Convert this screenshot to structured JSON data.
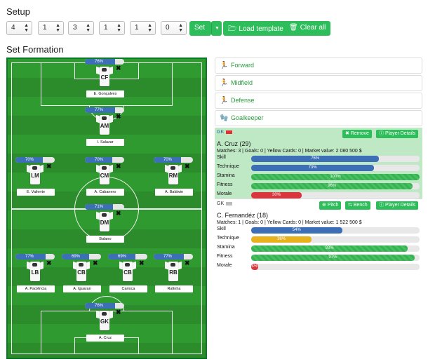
{
  "setup": {
    "title": "Setup",
    "selects": [
      "4",
      "1",
      "3",
      "1",
      "1",
      "0"
    ],
    "set_label": "Set",
    "load_label": "Load template",
    "clear_label": "Clear all"
  },
  "formation": {
    "title": "Set Formation",
    "players": [
      {
        "pos": "CF",
        "name": "E. Gonçalves",
        "pct_label": "76%",
        "pct": 0.76
      },
      {
        "pos": "AM",
        "name": "I. Salazar",
        "pct_label": "77%",
        "pct": 0.77
      },
      {
        "pos": "LM",
        "name": "E. Valiente",
        "pct_label": "70%",
        "pct": 0.7
      },
      {
        "pos": "CM",
        "name": "A. Cabanero",
        "pct_label": "70%",
        "pct": 0.7
      },
      {
        "pos": "RM",
        "name": "A. Baldwin",
        "pct_label": "70%",
        "pct": 0.7
      },
      {
        "pos": "DM",
        "name": "Balano",
        "pct_label": "71%",
        "pct": 0.71
      },
      {
        "pos": "LB",
        "name": "A. Paciência",
        "pct_label": "77%",
        "pct": 0.77
      },
      {
        "pos": "CB",
        "name": "A. Iguaran",
        "pct_label": "69%",
        "pct": 0.69
      },
      {
        "pos": "CB",
        "name": "Carioca",
        "pct_label": "69%",
        "pct": 0.69
      },
      {
        "pos": "RB",
        "name": "Rafinha",
        "pct_label": "77%",
        "pct": 0.77
      },
      {
        "pos": "GK",
        "name": "A. Cruz",
        "pct_label": "76%",
        "pct": 0.76
      }
    ],
    "remove_mark": "✖"
  },
  "panel": {
    "groups": [
      {
        "label": "Forward",
        "icon": "run-icon"
      },
      {
        "label": "Midfield",
        "icon": "run-icon"
      },
      {
        "label": "Defense",
        "icon": "run-icon"
      },
      {
        "label": "Goalkeeper",
        "icon": "goalkeeper-icon"
      }
    ],
    "cards": [
      {
        "pos": "GK",
        "name": "A. Cruz (29)",
        "meta": "Matches: 3 | Goals: 0 | Yellow Cards: 0 | Market value: 2 080 500 $",
        "buttons": [
          "Remove",
          "Player Details"
        ],
        "stats": [
          {
            "label": "Skill",
            "value": "76%",
            "pct": 0.76,
            "color": "blue"
          },
          {
            "label": "Technique",
            "value": "73%",
            "pct": 0.73,
            "color": "blue"
          },
          {
            "label": "Stamina",
            "value": "100%",
            "pct": 1.0,
            "color": "green"
          },
          {
            "label": "Fitness",
            "value": "96%",
            "pct": 0.96,
            "color": "green"
          },
          {
            "label": "Morale",
            "value": "30%",
            "pct": 0.3,
            "color": "red"
          }
        ]
      },
      {
        "pos": "GK",
        "name": "C. Fernandéz (18)",
        "meta": "Matches: 1 | Goals: 0 | Yellow Cards: 0 | Market value: 1 522 500 $",
        "buttons": [
          "Pitch",
          "Bench",
          "Player Details"
        ],
        "stats": [
          {
            "label": "Skill",
            "value": "54%",
            "pct": 0.54,
            "color": "blue"
          },
          {
            "label": "Technique",
            "value": "36%",
            "pct": 0.36,
            "color": "yellow"
          },
          {
            "label": "Stamina",
            "value": "93%",
            "pct": 0.93,
            "color": "green"
          },
          {
            "label": "Fitness",
            "value": "97%",
            "pct": 0.97,
            "color": "green"
          },
          {
            "label": "Morale",
            "value": "4%",
            "pct": 0.04,
            "color": "red"
          }
        ]
      }
    ]
  }
}
